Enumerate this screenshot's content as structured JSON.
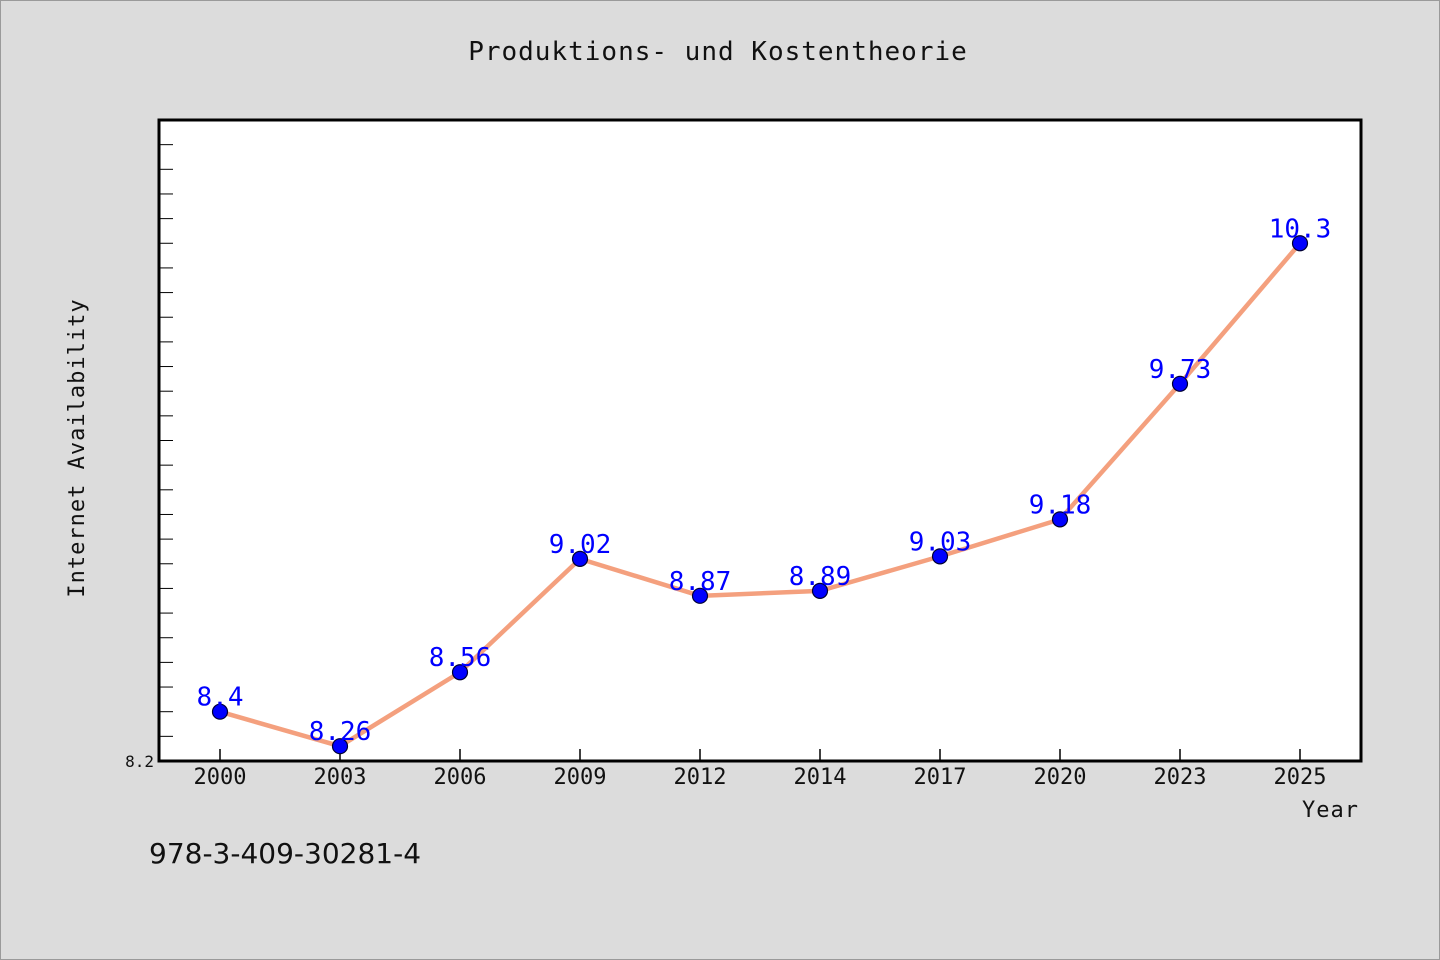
{
  "colors": {
    "background": "#dcdcdc",
    "plot_background": "#ffffff",
    "line": "#f4a07e",
    "marker": "#0000ff",
    "data_label": "#0000ff"
  },
  "footer": {
    "isbn": "978-3-409-30281-4"
  },
  "chart_data": {
    "type": "line",
    "title": "Produktions- und Kostentheorie",
    "xlabel": "Year",
    "ylabel": "Internet Availability",
    "categories": [
      "2000",
      "2003",
      "2006",
      "2009",
      "2012",
      "2014",
      "2017",
      "2020",
      "2023",
      "2025"
    ],
    "series": [
      {
        "values": [
          8.4,
          8.26,
          8.56,
          9.02,
          8.87,
          8.89,
          9.03,
          9.18,
          9.73,
          10.3
        ],
        "data_labels": [
          "8.4",
          "8.26",
          "8.56",
          "9.02",
          "8.87",
          "8.89",
          "9.03",
          "9.18",
          "9.73",
          "10.3"
        ]
      }
    ],
    "y_tick_labels": [
      "8.2"
    ],
    "ylim": [
      8.2,
      10.8
    ],
    "grid": false,
    "legend": "none"
  }
}
